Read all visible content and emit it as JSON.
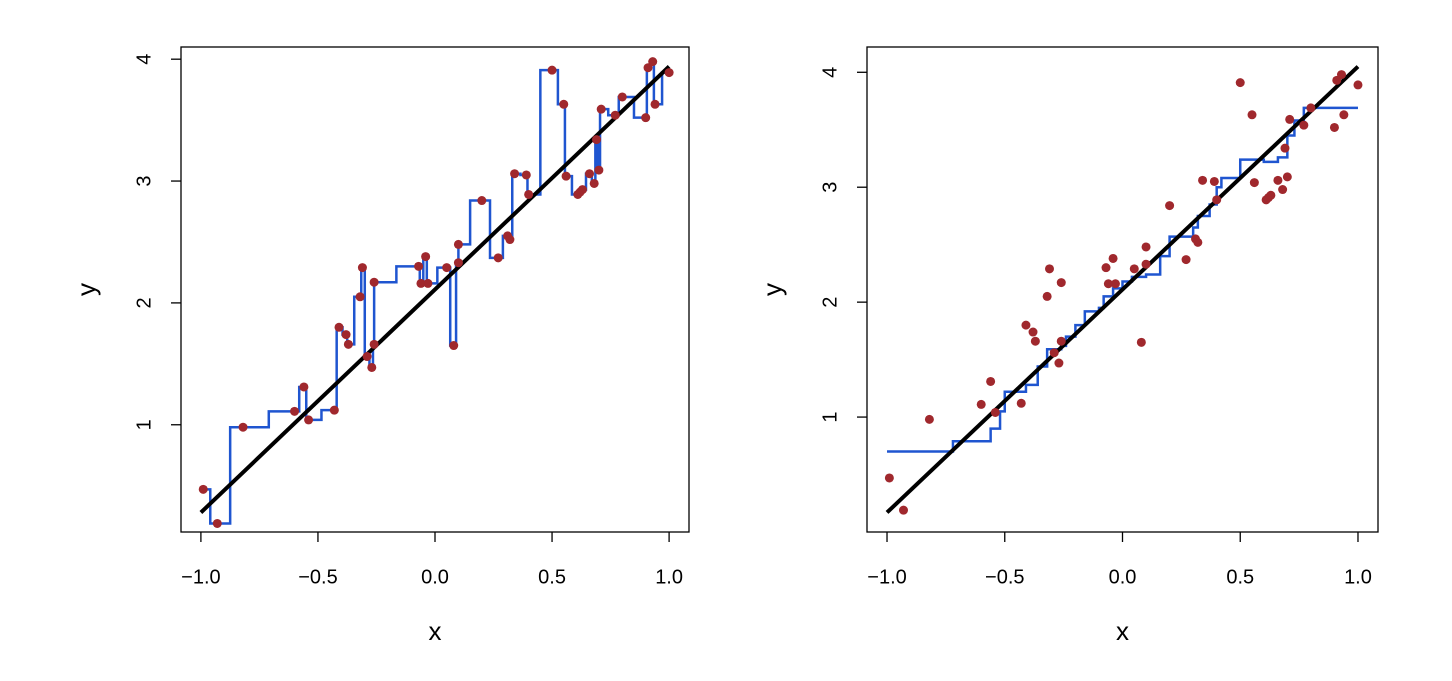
{
  "chart_data": [
    {
      "type": "scatter",
      "xlabel": "x",
      "ylabel": "y",
      "xlim": [
        -1.085,
        1.085
      ],
      "ylim": [
        0.12,
        4.1
      ],
      "xticks": [
        {
          "value": -1,
          "label": "−1.0"
        },
        {
          "value": -0.5,
          "label": "−0.5"
        },
        {
          "value": 0,
          "label": "0.0"
        },
        0.5,
        {
          "value": 1,
          "label": "1.0"
        }
      ],
      "yticks": [
        1,
        2,
        3,
        4
      ],
      "series": [
        {
          "mode": "step-mid",
          "color": "#1f55d0",
          "x": [
            -0.99,
            -0.93,
            -0.82,
            -0.6,
            -0.56,
            -0.54,
            -0.43,
            -0.41,
            -0.38,
            -0.37,
            -0.32,
            -0.31,
            -0.29,
            -0.27,
            -0.26,
            -0.26,
            -0.07,
            -0.06,
            -0.04,
            -0.03,
            0.05,
            0.08,
            0.1,
            0.1,
            0.2,
            0.27,
            0.31,
            0.32,
            0.34,
            0.39,
            0.4,
            0.5,
            0.55,
            0.56,
            0.61,
            0.62,
            0.63,
            0.66,
            0.68,
            0.69,
            0.7,
            0.71,
            0.77,
            0.8,
            0.9,
            0.91,
            0.93,
            0.94,
            1.0
          ],
          "values": [
            0.47,
            0.19,
            0.98,
            1.11,
            1.31,
            1.04,
            1.12,
            1.8,
            1.74,
            1.66,
            2.05,
            2.29,
            1.56,
            1.47,
            1.66,
            2.17,
            2.3,
            2.16,
            2.38,
            2.16,
            2.29,
            1.65,
            2.33,
            2.48,
            2.84,
            2.37,
            2.55,
            2.52,
            3.06,
            3.05,
            2.89,
            3.91,
            3.63,
            3.04,
            2.89,
            2.91,
            2.93,
            3.06,
            2.98,
            3.34,
            3.09,
            3.59,
            3.54,
            3.69,
            3.52,
            3.93,
            3.98,
            3.63,
            3.89
          ]
        },
        {
          "mode": "line",
          "color": "#000000",
          "x": [
            -1,
            1
          ],
          "values": [
            0.28,
            3.94
          ]
        },
        {
          "mode": "markers",
          "color": "#a0282d",
          "x": [
            -0.99,
            -0.93,
            -0.82,
            -0.6,
            -0.56,
            -0.54,
            -0.43,
            -0.41,
            -0.38,
            -0.37,
            -0.32,
            -0.31,
            -0.29,
            -0.27,
            -0.26,
            -0.26,
            -0.07,
            -0.06,
            -0.04,
            -0.03,
            0.05,
            0.08,
            0.1,
            0.1,
            0.2,
            0.27,
            0.31,
            0.32,
            0.34,
            0.39,
            0.4,
            0.5,
            0.55,
            0.56,
            0.61,
            0.62,
            0.63,
            0.66,
            0.68,
            0.69,
            0.7,
            0.71,
            0.77,
            0.8,
            0.9,
            0.91,
            0.93,
            0.94,
            1.0
          ],
          "values": [
            0.47,
            0.19,
            0.98,
            1.11,
            1.31,
            1.04,
            1.12,
            1.8,
            1.74,
            1.66,
            2.05,
            2.29,
            1.56,
            1.47,
            1.66,
            2.17,
            2.3,
            2.16,
            2.38,
            2.16,
            2.29,
            1.65,
            2.33,
            2.48,
            2.84,
            2.37,
            2.55,
            2.52,
            3.06,
            3.05,
            2.89,
            3.91,
            3.63,
            3.04,
            2.89,
            2.91,
            2.93,
            3.06,
            2.98,
            3.34,
            3.09,
            3.59,
            3.54,
            3.69,
            3.52,
            3.93,
            3.98,
            3.63,
            3.89
          ]
        }
      ]
    },
    {
      "type": "scatter",
      "xlabel": "x",
      "ylabel": "y",
      "xlim": [
        -1.085,
        1.085
      ],
      "ylim": [
        0,
        4.22
      ],
      "xticks": [
        {
          "value": -1,
          "label": "−1.0"
        },
        {
          "value": -0.5,
          "label": "−0.5"
        },
        {
          "value": 0,
          "label": "0.0"
        },
        0.5,
        {
          "value": 1,
          "label": "1.0"
        }
      ],
      "yticks": [
        1,
        2,
        3,
        4
      ],
      "series": [
        {
          "mode": "step-post",
          "color": "#1f55d0",
          "x": [
            -1.0,
            -0.72,
            -0.56,
            -0.52,
            -0.5,
            -0.41,
            -0.36,
            -0.32,
            -0.26,
            -0.24,
            -0.2,
            -0.16,
            -0.1,
            -0.08,
            -0.04,
            0.0,
            0.04,
            0.1,
            0.16,
            0.2,
            0.3,
            0.32,
            0.37,
            0.4,
            0.42,
            0.5,
            0.6,
            0.66,
            0.7,
            0.73,
            0.77,
            1.0
          ],
          "values": [
            0.7,
            0.79,
            0.9,
            1.05,
            1.22,
            1.28,
            1.44,
            1.59,
            1.62,
            1.7,
            1.8,
            1.92,
            1.95,
            2.05,
            2.12,
            2.18,
            2.22,
            2.24,
            2.4,
            2.57,
            2.65,
            2.75,
            2.85,
            3.0,
            3.08,
            3.24,
            3.22,
            3.26,
            3.45,
            3.58,
            3.69,
            3.69
          ]
        },
        {
          "mode": "line",
          "color": "#000000",
          "x": [
            -1,
            1
          ],
          "values": [
            0.17,
            4.05
          ]
        },
        {
          "mode": "markers",
          "color": "#a0282d",
          "x": [
            -0.99,
            -0.93,
            -0.82,
            -0.6,
            -0.56,
            -0.54,
            -0.43,
            -0.41,
            -0.38,
            -0.37,
            -0.32,
            -0.31,
            -0.29,
            -0.27,
            -0.26,
            -0.26,
            -0.07,
            -0.06,
            -0.04,
            -0.03,
            0.05,
            0.08,
            0.1,
            0.1,
            0.2,
            0.27,
            0.31,
            0.32,
            0.34,
            0.39,
            0.4,
            0.5,
            0.55,
            0.56,
            0.61,
            0.62,
            0.63,
            0.66,
            0.68,
            0.69,
            0.7,
            0.71,
            0.77,
            0.8,
            0.9,
            0.91,
            0.93,
            0.94,
            1.0
          ],
          "values": [
            0.47,
            0.19,
            0.98,
            1.11,
            1.31,
            1.04,
            1.12,
            1.8,
            1.74,
            1.66,
            2.05,
            2.29,
            1.56,
            1.47,
            1.66,
            2.17,
            2.3,
            2.16,
            2.38,
            2.16,
            2.29,
            1.65,
            2.33,
            2.48,
            2.84,
            2.37,
            2.55,
            2.52,
            3.06,
            3.05,
            2.89,
            3.91,
            3.63,
            3.04,
            2.89,
            2.91,
            2.93,
            3.06,
            2.98,
            3.34,
            3.09,
            3.59,
            3.54,
            3.69,
            3.52,
            3.93,
            3.98,
            3.63,
            3.89
          ]
        }
      ]
    }
  ]
}
